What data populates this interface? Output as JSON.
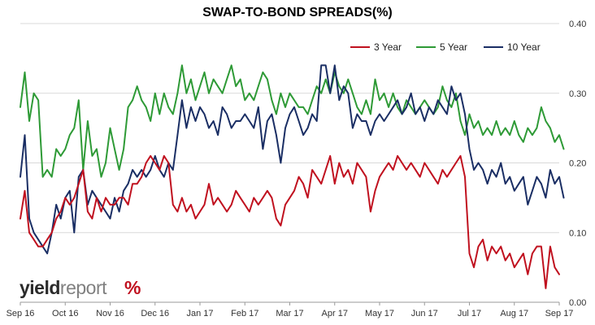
{
  "chart_data": {
    "type": "line",
    "title": "SWAP-TO-BOND SPREADS(%)",
    "xlabel": "",
    "ylabel": "",
    "ylim": [
      0,
      0.4
    ],
    "y_ticks": [
      "0.00",
      "0.10",
      "0.20",
      "0.30",
      "0.40"
    ],
    "y_axis_side": "right",
    "x_ticks": [
      "Sep 16",
      "Oct 16",
      "Nov 16",
      "Dec 16",
      "Jan 17",
      "Feb 17",
      "Mar 17",
      "Apr 17",
      "May 17",
      "Jun 17",
      "Jul 17",
      "Aug 17",
      "Sep 17"
    ],
    "grid": "horizontal",
    "legend_position": "top-right",
    "x_index_range": [
      0,
      120
    ],
    "series": [
      {
        "name": "3 Year",
        "color": "#c0111f",
        "values": [
          0.12,
          0.16,
          0.1,
          0.09,
          0.08,
          0.08,
          0.09,
          0.1,
          0.12,
          0.13,
          0.15,
          0.14,
          0.15,
          0.17,
          0.19,
          0.13,
          0.12,
          0.15,
          0.13,
          0.15,
          0.14,
          0.14,
          0.15,
          0.15,
          0.14,
          0.17,
          0.17,
          0.18,
          0.2,
          0.21,
          0.2,
          0.19,
          0.21,
          0.2,
          0.14,
          0.13,
          0.15,
          0.13,
          0.14,
          0.12,
          0.13,
          0.14,
          0.17,
          0.14,
          0.15,
          0.14,
          0.13,
          0.14,
          0.16,
          0.15,
          0.14,
          0.13,
          0.15,
          0.14,
          0.15,
          0.16,
          0.15,
          0.12,
          0.11,
          0.14,
          0.15,
          0.16,
          0.18,
          0.17,
          0.15,
          0.19,
          0.18,
          0.17,
          0.19,
          0.21,
          0.17,
          0.2,
          0.18,
          0.19,
          0.17,
          0.2,
          0.19,
          0.18,
          0.13,
          0.16,
          0.18,
          0.19,
          0.2,
          0.19,
          0.21,
          0.2,
          0.19,
          0.2,
          0.19,
          0.18,
          0.2,
          0.19,
          0.18,
          0.17,
          0.19,
          0.18,
          0.19,
          0.2,
          0.21,
          0.18,
          0.07,
          0.05,
          0.08,
          0.09,
          0.06,
          0.08,
          0.07,
          0.08,
          0.06,
          0.07,
          0.05,
          0.06,
          0.07,
          0.04,
          0.07,
          0.08,
          0.08,
          0.02,
          0.08,
          0.05,
          0.04
        ]
      },
      {
        "name": "5 Year",
        "color": "#2e9a36",
        "values": [
          0.28,
          0.33,
          0.26,
          0.3,
          0.29,
          0.18,
          0.19,
          0.18,
          0.22,
          0.21,
          0.22,
          0.24,
          0.25,
          0.29,
          0.19,
          0.26,
          0.21,
          0.22,
          0.18,
          0.2,
          0.25,
          0.22,
          0.19,
          0.22,
          0.28,
          0.29,
          0.31,
          0.29,
          0.28,
          0.26,
          0.3,
          0.27,
          0.3,
          0.28,
          0.27,
          0.3,
          0.34,
          0.3,
          0.32,
          0.29,
          0.31,
          0.33,
          0.3,
          0.32,
          0.31,
          0.3,
          0.32,
          0.34,
          0.31,
          0.32,
          0.29,
          0.3,
          0.29,
          0.31,
          0.33,
          0.32,
          0.29,
          0.27,
          0.3,
          0.28,
          0.3,
          0.29,
          0.28,
          0.28,
          0.27,
          0.29,
          0.31,
          0.3,
          0.32,
          0.3,
          0.33,
          0.31,
          0.3,
          0.32,
          0.3,
          0.28,
          0.27,
          0.29,
          0.27,
          0.32,
          0.29,
          0.3,
          0.28,
          0.3,
          0.28,
          0.27,
          0.29,
          0.28,
          0.27,
          0.28,
          0.29,
          0.28,
          0.27,
          0.28,
          0.31,
          0.29,
          0.28,
          0.3,
          0.26,
          0.24,
          0.27,
          0.25,
          0.26,
          0.24,
          0.25,
          0.24,
          0.26,
          0.24,
          0.25,
          0.24,
          0.26,
          0.24,
          0.23,
          0.25,
          0.24,
          0.25,
          0.28,
          0.26,
          0.25,
          0.23,
          0.24,
          0.22
        ]
      },
      {
        "name": "10 Year",
        "color": "#1a2e64",
        "values": [
          0.18,
          0.24,
          0.12,
          0.1,
          0.09,
          0.08,
          0.07,
          0.1,
          0.14,
          0.12,
          0.15,
          0.16,
          0.1,
          0.18,
          0.19,
          0.14,
          0.16,
          0.15,
          0.14,
          0.13,
          0.12,
          0.15,
          0.13,
          0.16,
          0.17,
          0.19,
          0.18,
          0.19,
          0.18,
          0.19,
          0.21,
          0.19,
          0.18,
          0.2,
          0.19,
          0.24,
          0.29,
          0.25,
          0.28,
          0.26,
          0.28,
          0.27,
          0.25,
          0.26,
          0.24,
          0.28,
          0.27,
          0.25,
          0.26,
          0.26,
          0.27,
          0.26,
          0.25,
          0.28,
          0.22,
          0.26,
          0.27,
          0.24,
          0.2,
          0.25,
          0.27,
          0.28,
          0.26,
          0.24,
          0.25,
          0.27,
          0.26,
          0.34,
          0.34,
          0.3,
          0.34,
          0.29,
          0.31,
          0.3,
          0.25,
          0.27,
          0.26,
          0.26,
          0.24,
          0.26,
          0.27,
          0.26,
          0.27,
          0.28,
          0.29,
          0.27,
          0.28,
          0.3,
          0.27,
          0.28,
          0.26,
          0.28,
          0.27,
          0.29,
          0.28,
          0.27,
          0.31,
          0.29,
          0.3,
          0.27,
          0.22,
          0.19,
          0.2,
          0.19,
          0.17,
          0.19,
          0.18,
          0.2,
          0.17,
          0.18,
          0.16,
          0.17,
          0.18,
          0.14,
          0.16,
          0.18,
          0.17,
          0.15,
          0.19,
          0.17,
          0.18,
          0.15
        ]
      }
    ]
  },
  "logo": {
    "part1": "yield",
    "part2": "report",
    "mark": "%"
  }
}
